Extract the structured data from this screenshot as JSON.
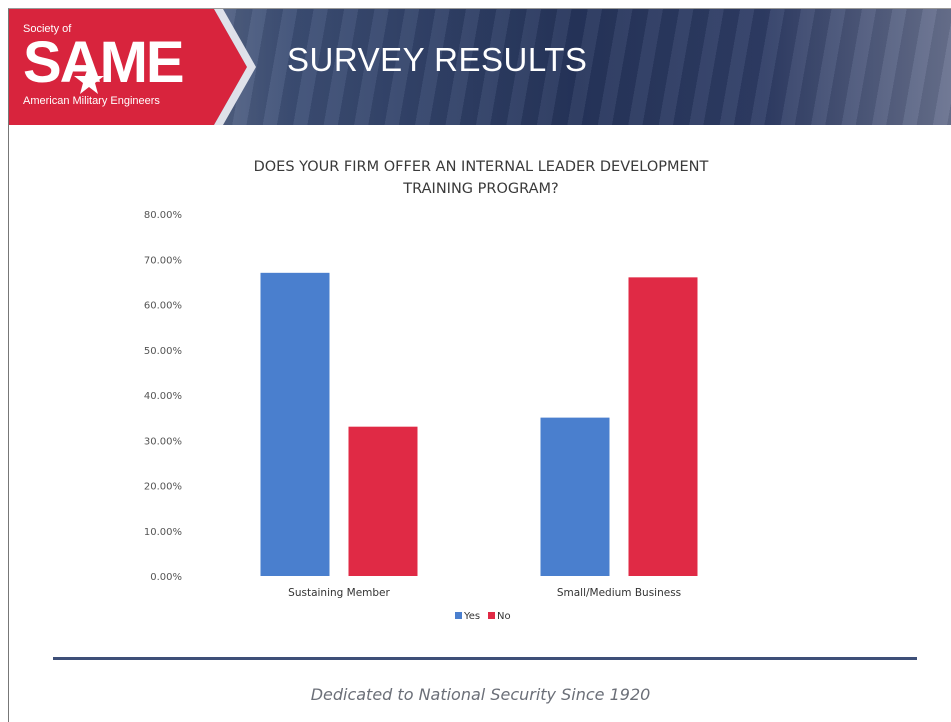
{
  "logo": {
    "top_text": "Society of",
    "main_text": "SAME",
    "sub_text": "American Military Engineers"
  },
  "slide": {
    "title": "SURVEY RESULTS",
    "footer": "Dedicated to National Security Since 1920"
  },
  "colors": {
    "yes": "#4a7fce",
    "no": "#e02a45",
    "logo_red": "#d8243d",
    "footer_line": "#3e4f78"
  },
  "chart_data": {
    "type": "bar",
    "title_lines": [
      "DOES YOUR FIRM OFFER AN INTERNAL LEADER DEVELOPMENT",
      "TRAINING PROGRAM?"
    ],
    "categories": [
      "Sustaining Member",
      "Small/Medium Business"
    ],
    "series": [
      {
        "name": "Yes",
        "values": [
          0.67,
          0.35
        ]
      },
      {
        "name": "No",
        "values": [
          0.33,
          0.66
        ]
      }
    ],
    "ylim": [
      0,
      0.8
    ],
    "yticks": [
      "0.00%",
      "10.00%",
      "20.00%",
      "30.00%",
      "40.00%",
      "50.00%",
      "60.00%",
      "70.00%",
      "80.00%"
    ],
    "grid": false,
    "legend": "bottom-center"
  }
}
